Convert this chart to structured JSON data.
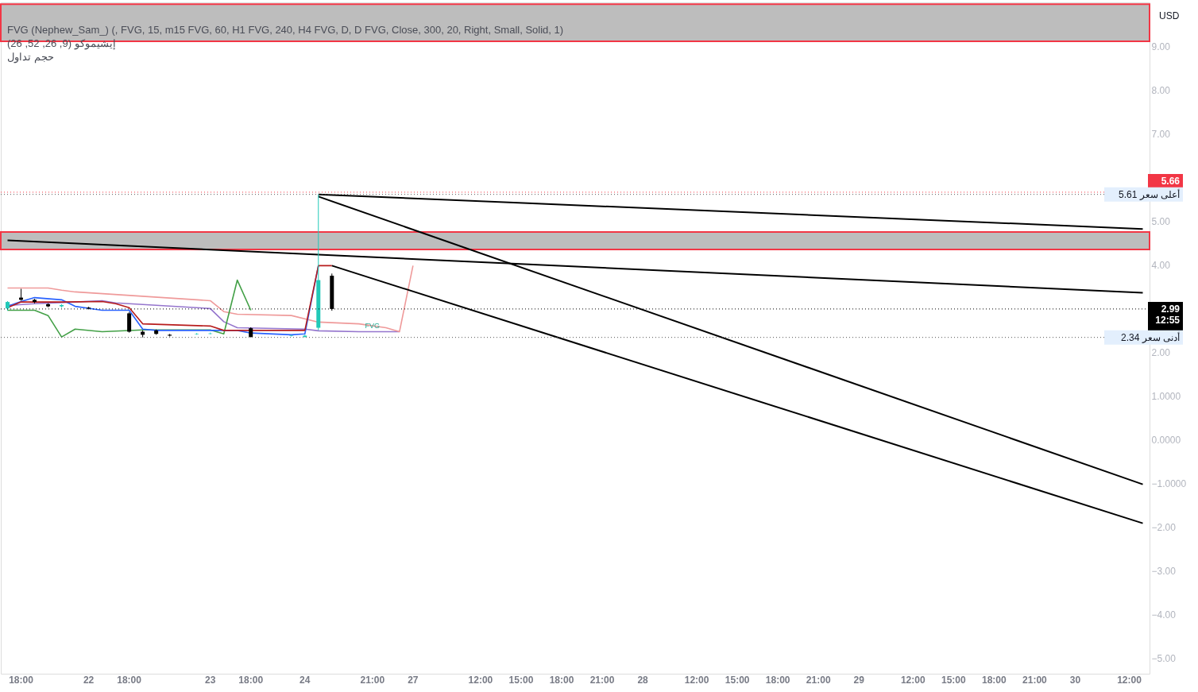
{
  "chart_data": {
    "type": "candlestick",
    "categories": [
      null,
      "18:00",
      null,
      null,
      null,
      null,
      "22",
      null,
      null,
      "18:00",
      null,
      null,
      null,
      null,
      null,
      "23",
      null,
      null,
      "18:00",
      null,
      null,
      null,
      "24",
      null,
      null,
      null,
      null,
      "21:00",
      null,
      null,
      "27",
      null,
      null,
      null,
      null,
      "12:00",
      null,
      null,
      "15:00",
      null,
      null,
      "18:00",
      null,
      null,
      "21:00",
      null,
      null,
      "28",
      null,
      null,
      null,
      "12:00",
      null,
      null,
      "15:00",
      null,
      null,
      "18:00",
      null,
      null,
      "21:00",
      null,
      null,
      "29",
      null,
      null,
      null,
      "12:00",
      null,
      null,
      "15:00",
      null,
      null,
      "18:00",
      null,
      null,
      "21:00",
      null,
      null,
      "30",
      null,
      null,
      null,
      "12:00",
      null
    ],
    "ohlc": [
      [
        3.0,
        3.17,
        2.95,
        3.15
      ],
      [
        3.25,
        3.45,
        3.18,
        3.2
      ],
      [
        3.2,
        3.22,
        3.12,
        3.15
      ],
      [
        3.1,
        3.12,
        3.03,
        3.05
      ],
      [
        3.05,
        3.1,
        3.02,
        3.08
      ],
      null,
      [
        3.02,
        3.04,
        2.98,
        3.0
      ],
      null,
      null,
      [
        2.89,
        2.92,
        2.45,
        2.47
      ],
      [
        2.47,
        2.5,
        2.34,
        2.4
      ],
      [
        2.5,
        2.52,
        2.4,
        2.42
      ],
      [
        2.4,
        2.42,
        2.36,
        2.38
      ],
      null,
      [
        2.41,
        2.44,
        2.4,
        2.42
      ],
      [
        2.42,
        2.45,
        2.41,
        2.43
      ],
      null,
      null,
      [
        2.55,
        2.57,
        2.34,
        2.35
      ],
      null,
      null,
      [
        2.37,
        2.4,
        2.36,
        2.38
      ],
      [
        2.35,
        2.4,
        2.34,
        2.38
      ],
      [
        2.56,
        5.61,
        2.5,
        3.65
      ],
      [
        3.75,
        3.8,
        2.95,
        2.99
      ],
      null,
      null,
      null,
      null,
      null,
      null,
      null,
      null,
      null,
      null,
      null,
      null,
      null,
      null,
      null,
      null,
      null,
      null,
      null,
      null,
      null,
      null,
      null,
      null,
      null,
      null,
      null,
      null,
      null,
      null,
      null,
      null,
      null,
      null,
      null,
      null,
      null,
      null,
      null,
      null,
      null,
      null,
      null,
      null,
      null,
      null,
      null,
      null,
      null,
      null,
      null,
      null,
      null,
      null,
      null,
      null,
      null,
      null,
      null,
      null
    ],
    "colors": [
      "#22c9b8",
      "#000000",
      "#000000",
      "#000000",
      "#22c9b8",
      null,
      "#000000",
      null,
      null,
      "#000000",
      "#000000",
      "#000000",
      "#000000",
      null,
      "#22c9b8",
      "#22c9b8",
      null,
      null,
      "#000000",
      null,
      null,
      "#22c9b8",
      "#22c9b8",
      "#22c9b8",
      "#000000",
      null,
      null,
      null,
      null,
      null,
      null,
      null,
      null,
      null,
      null,
      null,
      null,
      null,
      null,
      null,
      null,
      null,
      null,
      null,
      null,
      null,
      null,
      null,
      null,
      null,
      null,
      null,
      null,
      null,
      null,
      null,
      null,
      null,
      null,
      null,
      null,
      null,
      null,
      null,
      null,
      null,
      null,
      null,
      null,
      null,
      null,
      null,
      null,
      null,
      null,
      null,
      null,
      null,
      null,
      null,
      null,
      null,
      null,
      null,
      null
    ],
    "series": [
      {
        "type": "line",
        "color": "#9575cd",
        "values": [
          3.07,
          null,
          3.11,
          null,
          null,
          3.15,
          null,
          3.18,
          3.13,
          null,
          null,
          null,
          null,
          null,
          null,
          3.0,
          2.7,
          2.56,
          null,
          null,
          null,
          null,
          2.53,
          2.49,
          null,
          null,
          2.47,
          null,
          null,
          2.47,
          null,
          null,
          null,
          null,
          null,
          null,
          null,
          null,
          null,
          null,
          null,
          null,
          null,
          null,
          null,
          null,
          null,
          null,
          null,
          null,
          null,
          null,
          null,
          null,
          null,
          null,
          null,
          null,
          null,
          null,
          null,
          null,
          null,
          null,
          null,
          null,
          null,
          null,
          null,
          null,
          null,
          null,
          null,
          null,
          null,
          null,
          null,
          null,
          null,
          null,
          null,
          null,
          null,
          null,
          null
        ]
      },
      {
        "type": "line",
        "color": "#ef9a9a",
        "values": [
          3.47,
          null,
          null,
          3.47,
          3.42,
          3.38,
          null,
          null,
          null,
          null,
          null,
          null,
          null,
          null,
          null,
          3.18,
          2.93,
          2.87,
          null,
          null,
          null,
          2.84,
          null,
          2.69,
          null,
          null,
          2.65,
          null,
          2.56,
          2.47,
          3.98,
          null,
          null,
          null,
          null,
          null,
          null,
          null,
          null,
          null,
          null,
          null,
          null,
          null,
          null,
          null,
          null,
          null,
          null,
          null,
          null,
          null,
          null,
          null,
          null,
          null,
          null,
          null,
          null,
          null,
          null,
          null,
          null,
          null,
          null,
          null,
          null,
          null,
          null,
          null,
          null,
          null,
          null,
          null,
          null,
          null,
          null,
          null,
          null,
          null,
          null,
          null,
          null,
          null,
          null
        ]
      },
      {
        "type": "line",
        "color": "#43a047",
        "values": [
          2.96,
          null,
          2.96,
          2.84,
          2.35,
          2.53,
          null,
          2.47,
          null,
          null,
          2.51,
          null,
          null,
          null,
          null,
          2.51,
          2.42,
          3.65,
          2.96,
          null,
          null,
          null,
          null,
          null,
          null,
          null,
          null,
          null,
          null,
          null,
          null,
          null,
          null,
          null,
          null,
          null,
          null,
          null,
          null,
          null,
          null,
          null,
          null,
          null,
          null,
          null,
          null,
          null,
          null,
          null,
          null,
          null,
          null,
          null,
          null,
          null,
          null,
          null,
          null,
          null,
          null,
          null,
          null,
          null,
          null,
          null,
          null,
          null,
          null,
          null,
          null,
          null,
          null,
          null,
          null,
          null,
          null,
          null,
          null,
          null,
          null,
          null,
          null,
          null,
          null
        ]
      },
      {
        "type": "line",
        "color": "#2962ff",
        "values": [
          3.05,
          3.16,
          3.25,
          null,
          3.2,
          3.05,
          null,
          2.96,
          null,
          2.96,
          2.53,
          2.5,
          null,
          null,
          null,
          null,
          null,
          2.5,
          2.44,
          null,
          null,
          2.4,
          2.42,
          3.98,
          null,
          null,
          null,
          null,
          null,
          null,
          null,
          null,
          null,
          null,
          null,
          null,
          null,
          null,
          null,
          null,
          null,
          null,
          null,
          null,
          null,
          null,
          null,
          null,
          null,
          null,
          null,
          null,
          null,
          null,
          null,
          null,
          null,
          null,
          null,
          null,
          null,
          null,
          null,
          null,
          null,
          null,
          null,
          null,
          null,
          null,
          null,
          null,
          null,
          null,
          null,
          null,
          null,
          null,
          null,
          null,
          null,
          null,
          null,
          null,
          null
        ]
      },
      {
        "type": "line",
        "color": "#b71c1c",
        "values": [
          3.02,
          3.15,
          null,
          null,
          3.15,
          null,
          null,
          3.16,
          3.11,
          3.02,
          2.65,
          null,
          null,
          null,
          null,
          2.6,
          2.5,
          null,
          null,
          null,
          null,
          null,
          2.5,
          3.98,
          3.98,
          null,
          null,
          null,
          null,
          null,
          null,
          null,
          null,
          null,
          null,
          null,
          null,
          null,
          null,
          null,
          null,
          null,
          null,
          null,
          null,
          null,
          null,
          null,
          null,
          null,
          null,
          null,
          null,
          null,
          null,
          null,
          null,
          null,
          null,
          null,
          null,
          null,
          null,
          null,
          null,
          null,
          null,
          null,
          null,
          null,
          null,
          null,
          null,
          null,
          null,
          null,
          null,
          null,
          null,
          null,
          null,
          null,
          null,
          null,
          null
        ]
      },
      {
        "type": "line",
        "color": "#000000",
        "values": [
          null,
          null,
          null,
          null,
          null,
          null,
          null,
          null,
          null,
          null,
          null,
          null,
          null,
          null,
          null,
          null,
          null,
          null,
          null,
          null,
          null,
          null,
          null,
          5.61,
          null,
          null,
          null,
          null,
          null,
          null,
          null,
          null,
          null,
          null,
          null,
          null,
          null,
          null,
          null,
          null,
          null,
          null,
          null,
          null,
          null,
          null,
          null,
          null,
          null,
          null,
          null,
          null,
          null,
          null,
          null,
          null,
          null,
          null,
          null,
          null,
          null,
          null,
          null,
          null,
          null,
          null,
          null,
          null,
          null,
          null,
          null,
          null,
          null,
          null,
          null,
          null,
          null,
          null,
          null,
          null,
          null,
          null,
          null,
          null,
          4.82
        ]
      },
      {
        "type": "line",
        "color": "#000000",
        "values": [
          4.56,
          null,
          null,
          null,
          null,
          null,
          null,
          null,
          null,
          null,
          null,
          null,
          null,
          null,
          null,
          null,
          null,
          null,
          null,
          null,
          null,
          null,
          null,
          null,
          null,
          null,
          null,
          null,
          null,
          null,
          null,
          null,
          null,
          null,
          null,
          null,
          null,
          null,
          null,
          null,
          null,
          null,
          null,
          null,
          null,
          null,
          null,
          null,
          null,
          null,
          null,
          null,
          null,
          null,
          null,
          null,
          null,
          null,
          null,
          null,
          null,
          null,
          null,
          null,
          null,
          null,
          null,
          null,
          null,
          null,
          null,
          null,
          null,
          null,
          null,
          null,
          null,
          null,
          null,
          null,
          null,
          null,
          null,
          null,
          3.36
        ]
      },
      {
        "type": "line",
        "color": "#000000",
        "values": [
          null,
          null,
          null,
          null,
          null,
          null,
          null,
          null,
          null,
          null,
          null,
          null,
          null,
          null,
          null,
          null,
          null,
          null,
          null,
          null,
          null,
          null,
          null,
          5.56,
          null,
          null,
          null,
          null,
          null,
          null,
          null,
          null,
          null,
          null,
          null,
          null,
          null,
          null,
          null,
          null,
          null,
          null,
          null,
          null,
          null,
          null,
          null,
          null,
          null,
          null,
          null,
          null,
          null,
          null,
          null,
          null,
          null,
          null,
          null,
          null,
          null,
          null,
          null,
          null,
          null,
          null,
          null,
          null,
          null,
          null,
          null,
          null,
          null,
          null,
          null,
          null,
          null,
          null,
          null,
          null,
          null,
          null,
          null,
          null,
          -1.02
        ]
      },
      {
        "type": "line",
        "color": "#000000",
        "values": [
          null,
          null,
          null,
          null,
          null,
          null,
          null,
          null,
          null,
          null,
          null,
          null,
          null,
          null,
          null,
          null,
          null,
          null,
          null,
          null,
          null,
          null,
          null,
          null,
          3.98,
          null,
          null,
          null,
          null,
          null,
          null,
          null,
          null,
          null,
          null,
          null,
          null,
          null,
          null,
          null,
          null,
          null,
          null,
          null,
          null,
          null,
          null,
          null,
          null,
          null,
          null,
          null,
          null,
          null,
          null,
          null,
          null,
          null,
          null,
          null,
          null,
          null,
          null,
          null,
          null,
          null,
          null,
          null,
          null,
          null,
          null,
          null,
          null,
          null,
          null,
          null,
          null,
          null,
          null,
          null,
          null,
          null,
          null,
          null,
          -1.91
        ]
      }
    ],
    "ylim": [
      -5.35,
      10.0
    ],
    "yticks": [
      {
        "value": 9,
        "label": "9.00"
      },
      {
        "value": 8,
        "label": "8.00"
      },
      {
        "value": 7,
        "label": "7.00"
      },
      {
        "value": 5,
        "label": "5.00"
      },
      {
        "value": 4,
        "label": "4.00"
      },
      {
        "value": 2,
        "label": "2.00"
      },
      {
        "value": 1,
        "label": "1.0000"
      },
      {
        "value": 0,
        "label": "0.0000"
      },
      {
        "value": -1,
        "label": "−1.0000"
      },
      {
        "value": -2,
        "label": "−2.00"
      },
      {
        "value": -3,
        "label": "−3.00"
      },
      {
        "value": -4,
        "label": "−4.00"
      },
      {
        "value": -5,
        "label": "−5.00"
      }
    ],
    "ref_lines": [
      {
        "axis": "y",
        "value": 5.66,
        "label": "5.66",
        "color": "#f23645",
        "line_style": "dotted"
      },
      {
        "axis": "y",
        "value": 5.61,
        "label": "أعلى سعر 5.61",
        "line_style": "dotted"
      },
      {
        "axis": "y",
        "value": 2.99,
        "label": "2.99 12:55",
        "color": "#000000",
        "line_style": "dotted"
      },
      {
        "axis": "y",
        "value": 2.34,
        "label": "أدنى سعر 2.34",
        "line_style": "dotted"
      }
    ],
    "bands": [
      {
        "axis": "y",
        "from": 9.11,
        "to": 9.96,
        "color": "#bdbdbd"
      },
      {
        "axis": "y",
        "from": 4.35,
        "to": 4.75,
        "color": "#bdbdbd"
      }
    ],
    "annotations": [
      "FVG (Nephew_Sam_) (, FVG, 15, m15 FVG, 60, H1 FVG, 240, H4 FVG, D, D FVG, Close, 300, 20, Right, Small, Solid, 1)",
      "إيشيموكو (9, 26, 52, 26)",
      "حجم تداول",
      "USD",
      {
        "text": "FVG",
        "x": "21:00",
        "y": 2.6
      }
    ],
    "grid": false
  }
}
